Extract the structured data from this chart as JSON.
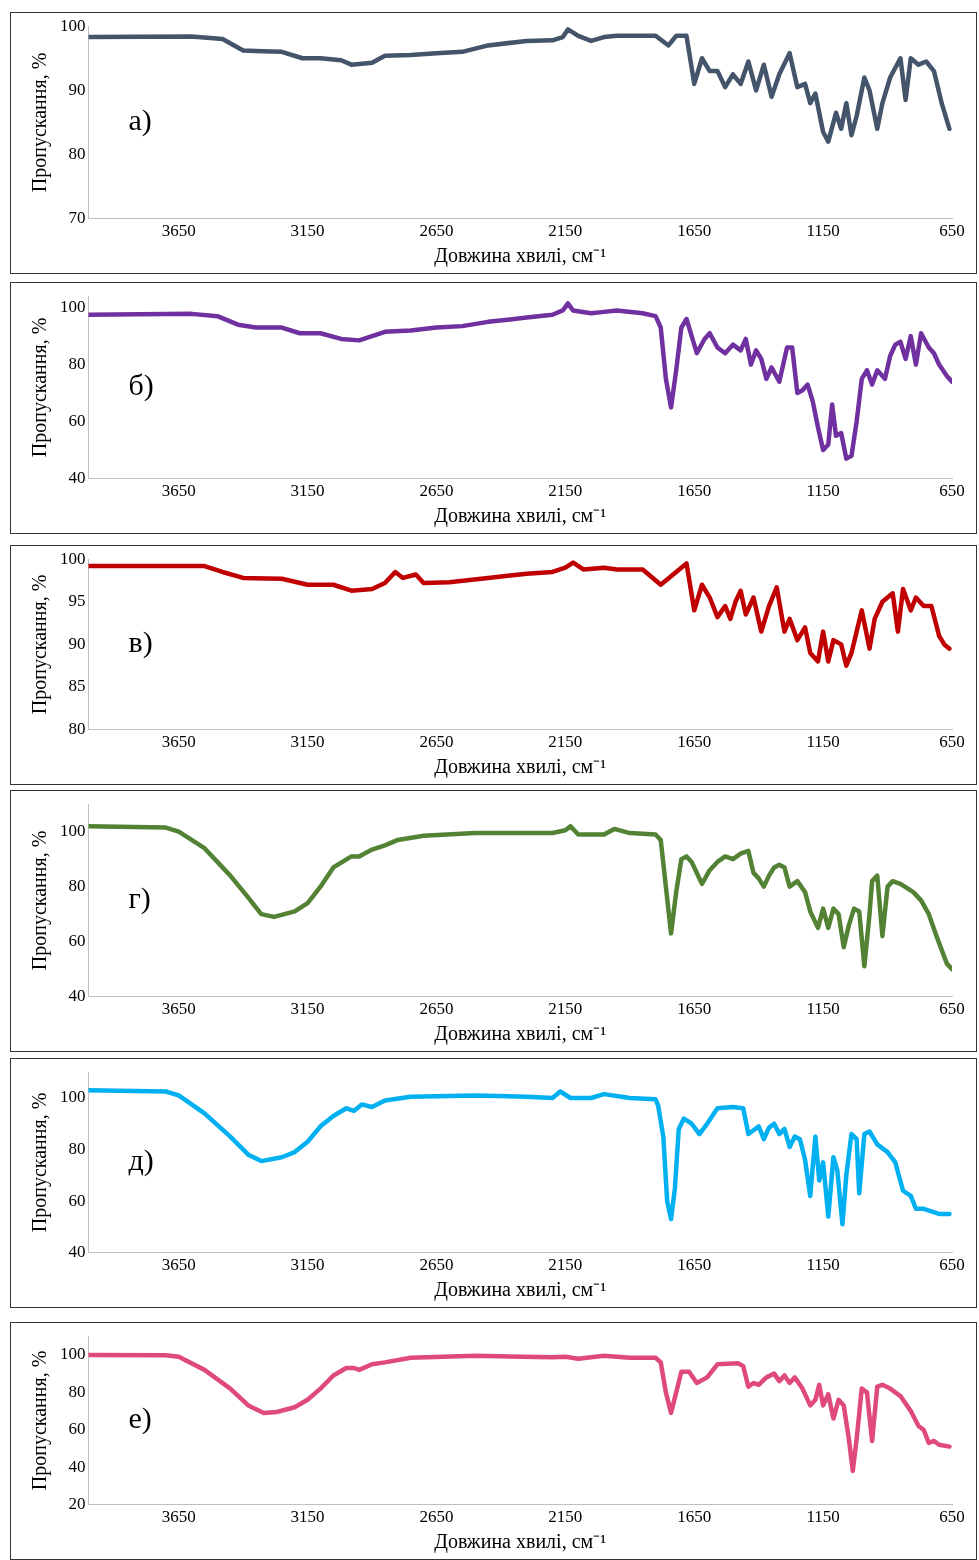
{
  "chart_data": [
    {
      "type": "line",
      "xlabel": "Довжина хвилі, см⁻¹",
      "ylabel": "Пропускання, %",
      "annotations": [
        "а)"
      ],
      "xlim": [
        4000,
        650
      ],
      "xticks": [
        3650,
        3150,
        2650,
        2150,
        1650,
        1150,
        650
      ],
      "ylim": [
        70,
        100
      ],
      "yticks": [
        70,
        80,
        90,
        100
      ],
      "grid": false,
      "legend": false,
      "series": [
        {
          "color": "#44546a",
          "x": [
            4000,
            3600,
            3480,
            3400,
            3250,
            3170,
            3100,
            3020,
            2980,
            2900,
            2850,
            2750,
            2650,
            2550,
            2450,
            2300,
            2200,
            2160,
            2140,
            2100,
            2050,
            2000,
            1950,
            1800,
            1750,
            1720,
            1680,
            1650,
            1620,
            1590,
            1560,
            1530,
            1500,
            1470,
            1440,
            1410,
            1380,
            1350,
            1320,
            1280,
            1250,
            1220,
            1200,
            1180,
            1150,
            1130,
            1100,
            1080,
            1060,
            1040,
            1020,
            990,
            970,
            940,
            920,
            890,
            850,
            830,
            810,
            780,
            750,
            720,
            690,
            660
          ],
          "values": [
            98.3,
            98.4,
            98,
            96.2,
            96,
            95,
            95,
            94.7,
            94,
            94.3,
            95.4,
            95.5,
            95.8,
            96,
            97,
            97.7,
            97.8,
            98.3,
            99.5,
            98.5,
            97.7,
            98.3,
            98.5,
            98.5,
            97,
            98.5,
            98.5,
            91,
            95,
            93,
            93,
            90.5,
            92.5,
            91,
            94.5,
            90,
            94,
            89,
            92.5,
            95.8,
            90.5,
            91,
            88,
            89.5,
            83.5,
            82,
            86.5,
            84,
            88,
            83,
            86,
            92,
            90,
            84,
            88,
            92,
            95,
            88.5,
            95,
            94,
            94.5,
            93,
            88,
            84
          ]
        }
      ]
    },
    {
      "type": "line",
      "xlabel": "Довжина хвилі, см⁻¹",
      "ylabel": "Пропускання, %",
      "annotations": [
        "б)"
      ],
      "xlim": [
        4000,
        650
      ],
      "xticks": [
        3650,
        3150,
        2650,
        2150,
        1650,
        1150,
        650
      ],
      "ylim": [
        40,
        104
      ],
      "yticks": [
        40,
        60,
        80,
        100
      ],
      "grid": false,
      "legend": false,
      "series": [
        {
          "color": "#7030a0",
          "x": [
            4000,
            3600,
            3500,
            3420,
            3350,
            3250,
            3180,
            3100,
            3020,
            2950,
            2900,
            2850,
            2750,
            2650,
            2550,
            2450,
            2300,
            2200,
            2160,
            2140,
            2120,
            2050,
            2000,
            1950,
            1850,
            1800,
            1780,
            1760,
            1740,
            1720,
            1700,
            1680,
            1660,
            1640,
            1610,
            1590,
            1560,
            1530,
            1500,
            1470,
            1450,
            1430,
            1410,
            1390,
            1370,
            1350,
            1320,
            1290,
            1270,
            1250,
            1230,
            1210,
            1190,
            1170,
            1150,
            1130,
            1115,
            1100,
            1080,
            1060,
            1040,
            1020,
            1000,
            980,
            960,
            940,
            910,
            890,
            870,
            850,
            830,
            810,
            790,
            770,
            740,
            720,
            700,
            670,
            650
          ],
          "values": [
            97.5,
            97.8,
            97,
            94,
            93,
            93,
            91,
            91,
            89,
            88.5,
            90,
            91.5,
            92,
            93,
            93.5,
            95,
            96.5,
            97.5,
            99,
            101.5,
            99,
            98,
            98.5,
            99,
            98,
            97,
            93,
            75,
            65,
            78,
            93,
            96,
            90,
            84,
            89,
            91,
            86,
            84,
            87,
            85,
            89,
            80,
            85,
            82,
            75,
            79,
            74,
            86,
            86,
            70,
            71,
            73,
            67,
            58,
            50,
            52,
            66,
            55,
            56,
            47,
            48,
            60,
            75,
            78,
            73,
            78,
            75,
            83,
            87,
            88,
            82,
            90,
            80,
            91,
            86,
            84,
            80,
            76,
            74
          ]
        }
      ]
    },
    {
      "type": "line",
      "xlabel": "Довжина хвилі, см⁻¹",
      "ylabel": "Пропускання, %",
      "annotations": [
        "в)"
      ],
      "xlim": [
        4000,
        650
      ],
      "xticks": [
        3650,
        3150,
        2650,
        2150,
        1650,
        1150,
        650
      ],
      "ylim": [
        80,
        100
      ],
      "yticks": [
        80,
        85,
        90,
        95,
        100
      ],
      "grid": false,
      "legend": false,
      "series": [
        {
          "color": "#c00000",
          "x": [
            4000,
            3550,
            3480,
            3400,
            3250,
            3150,
            3050,
            2980,
            2900,
            2850,
            2810,
            2780,
            2730,
            2700,
            2600,
            2450,
            2300,
            2200,
            2150,
            2120,
            2080,
            2000,
            1950,
            1850,
            1780,
            1720,
            1680,
            1650,
            1620,
            1590,
            1560,
            1530,
            1510,
            1490,
            1470,
            1450,
            1420,
            1390,
            1360,
            1330,
            1300,
            1280,
            1250,
            1220,
            1200,
            1170,
            1150,
            1130,
            1110,
            1080,
            1060,
            1040,
            1000,
            970,
            950,
            920,
            880,
            860,
            840,
            810,
            790,
            760,
            730,
            700,
            680,
            660
          ],
          "values": [
            99.2,
            99.2,
            98.5,
            97.8,
            97.7,
            97,
            97,
            96.3,
            96.5,
            97.2,
            98.5,
            97.8,
            98.2,
            97.2,
            97.3,
            97.8,
            98.3,
            98.5,
            99,
            99.6,
            98.8,
            99,
            98.8,
            98.8,
            97,
            98.5,
            99.5,
            94,
            97,
            95.5,
            93.2,
            94.5,
            93,
            95,
            96.3,
            93.5,
            95.5,
            91.5,
            94.5,
            96.7,
            91.5,
            93,
            90.5,
            92,
            89,
            88,
            91.5,
            88,
            90.5,
            90,
            87.5,
            89,
            94,
            89.5,
            93,
            95,
            96,
            91.5,
            96.5,
            94,
            95.5,
            94.5,
            94.5,
            91,
            90,
            89.5
          ]
        }
      ]
    },
    {
      "type": "line",
      "xlabel": "Довжина хвилі, см⁻¹",
      "ylabel": "Пропускання, %",
      "annotations": [
        "г)"
      ],
      "xlim": [
        4000,
        650
      ],
      "xticks": [
        3650,
        3150,
        2650,
        2150,
        1650,
        1150,
        650
      ],
      "ylim": [
        40,
        110
      ],
      "yticks": [
        40,
        60,
        80,
        100
      ],
      "grid": false,
      "legend": false,
      "series": [
        {
          "color": "#548235",
          "x": [
            4000,
            3700,
            3650,
            3550,
            3450,
            3380,
            3330,
            3280,
            3200,
            3150,
            3100,
            3050,
            2980,
            2950,
            2900,
            2850,
            2800,
            2700,
            2500,
            2200,
            2150,
            2130,
            2100,
            2000,
            1960,
            1900,
            1800,
            1780,
            1760,
            1740,
            1720,
            1700,
            1680,
            1660,
            1620,
            1590,
            1560,
            1530,
            1500,
            1470,
            1440,
            1420,
            1400,
            1380,
            1360,
            1340,
            1320,
            1300,
            1280,
            1250,
            1220,
            1200,
            1170,
            1150,
            1130,
            1110,
            1090,
            1070,
            1050,
            1030,
            1010,
            990,
            970,
            960,
            940,
            920,
            900,
            880,
            850,
            800,
            770,
            740,
            710,
            690,
            670,
            650
          ],
          "values": [
            102,
            101.5,
            100,
            94,
            84,
            76,
            70,
            69,
            71,
            74,
            80,
            87,
            91,
            91,
            93.5,
            95,
            97,
            98.5,
            99.5,
            99.5,
            100.5,
            102,
            99,
            99,
            101,
            99.5,
            99,
            97,
            80,
            63,
            78,
            90,
            91,
            89,
            81,
            86,
            89,
            91,
            90,
            92,
            93,
            85,
            83,
            80,
            84,
            87,
            88,
            87,
            80,
            82,
            78,
            71,
            65,
            72,
            65,
            72,
            70,
            58,
            66,
            72,
            71,
            51,
            70,
            82,
            84,
            62,
            80,
            82,
            81,
            78,
            75,
            70,
            62,
            57,
            52,
            50
          ]
        }
      ]
    },
    {
      "type": "line",
      "xlabel": "Довжина хвилі, см⁻¹",
      "ylabel": "Пропускання, %",
      "annotations": [
        "д)"
      ],
      "xlim": [
        4000,
        650
      ],
      "xticks": [
        3650,
        3150,
        2650,
        2150,
        1650,
        1150,
        650
      ],
      "ylim": [
        40,
        110
      ],
      "yticks": [
        40,
        60,
        80,
        100
      ],
      "grid": false,
      "legend": false,
      "series": [
        {
          "color": "#00b0f0",
          "x": [
            4000,
            3700,
            3650,
            3550,
            3450,
            3380,
            3330,
            3250,
            3200,
            3150,
            3100,
            3050,
            3000,
            2970,
            2940,
            2900,
            2850,
            2750,
            2500,
            2300,
            2200,
            2170,
            2130,
            2050,
            2000,
            1900,
            1800,
            1790,
            1770,
            1755,
            1740,
            1725,
            1710,
            1690,
            1660,
            1630,
            1600,
            1560,
            1500,
            1460,
            1440,
            1420,
            1400,
            1380,
            1360,
            1340,
            1320,
            1300,
            1280,
            1260,
            1240,
            1220,
            1200,
            1180,
            1165,
            1150,
            1130,
            1110,
            1095,
            1075,
            1060,
            1040,
            1020,
            1010,
            990,
            970,
            940,
            900,
            870,
            840,
            810,
            790,
            760,
            730,
            700,
            660
          ],
          "values": [
            103,
            102.5,
            101,
            94,
            85,
            78,
            75.5,
            77,
            79,
            83,
            89,
            93,
            96,
            95,
            97.5,
            96.5,
            99,
            100.5,
            101,
            100.5,
            100,
            102.5,
            100,
            100,
            101.5,
            100,
            99.5,
            97,
            85,
            60,
            53,
            65,
            88,
            92,
            90,
            86,
            90,
            96,
            96.5,
            96,
            86,
            87.5,
            89,
            84,
            88.5,
            90,
            86,
            88,
            81,
            85,
            84,
            76,
            62,
            85,
            68,
            75,
            54,
            77,
            72,
            51,
            70,
            86,
            84,
            63,
            86,
            87,
            82,
            79,
            75,
            64,
            62,
            57,
            57,
            56,
            55,
            55
          ]
        }
      ]
    },
    {
      "type": "line",
      "xlabel": "Довжина хвилі, см⁻¹",
      "ylabel": "Пропускання, %",
      "annotations": [
        "е)"
      ],
      "xlim": [
        4000,
        650
      ],
      "xticks": [
        3650,
        3150,
        2650,
        2150,
        1650,
        1150,
        650
      ],
      "ylim": [
        20,
        110
      ],
      "yticks": [
        20,
        40,
        60,
        80,
        100
      ],
      "grid": false,
      "legend": false,
      "series": [
        {
          "color": "#e0497e",
          "x": [
            4000,
            3700,
            3650,
            3550,
            3450,
            3380,
            3320,
            3270,
            3200,
            3150,
            3100,
            3050,
            3000,
            2970,
            2950,
            2900,
            2850,
            2750,
            2500,
            2200,
            2150,
            2100,
            2000,
            1900,
            1800,
            1780,
            1760,
            1740,
            1720,
            1700,
            1670,
            1640,
            1600,
            1560,
            1480,
            1460,
            1440,
            1420,
            1400,
            1370,
            1340,
            1320,
            1300,
            1280,
            1260,
            1230,
            1200,
            1180,
            1165,
            1150,
            1130,
            1110,
            1090,
            1070,
            1050,
            1035,
            1020,
            1000,
            980,
            960,
            940,
            920,
            890,
            850,
            810,
            780,
            760,
            740,
            720,
            700,
            660
          ],
          "values": [
            100,
            99.8,
            99,
            92,
            82,
            73,
            69,
            69.5,
            72,
            76,
            82,
            89,
            93,
            93,
            92,
            95,
            96,
            98.5,
            99.5,
            98.8,
            99,
            98,
            99.5,
            98.5,
            98.5,
            96,
            80,
            69,
            80,
            91,
            91,
            85,
            88,
            95,
            95.5,
            94,
            83,
            85,
            84,
            88,
            90,
            86,
            89,
            85,
            88,
            82,
            73,
            76,
            84,
            73,
            79,
            66,
            76,
            73,
            55,
            38,
            55,
            82,
            80,
            54,
            83,
            84,
            82,
            78,
            70,
            62,
            60,
            53,
            54,
            52,
            51
          ]
        }
      ]
    }
  ]
}
